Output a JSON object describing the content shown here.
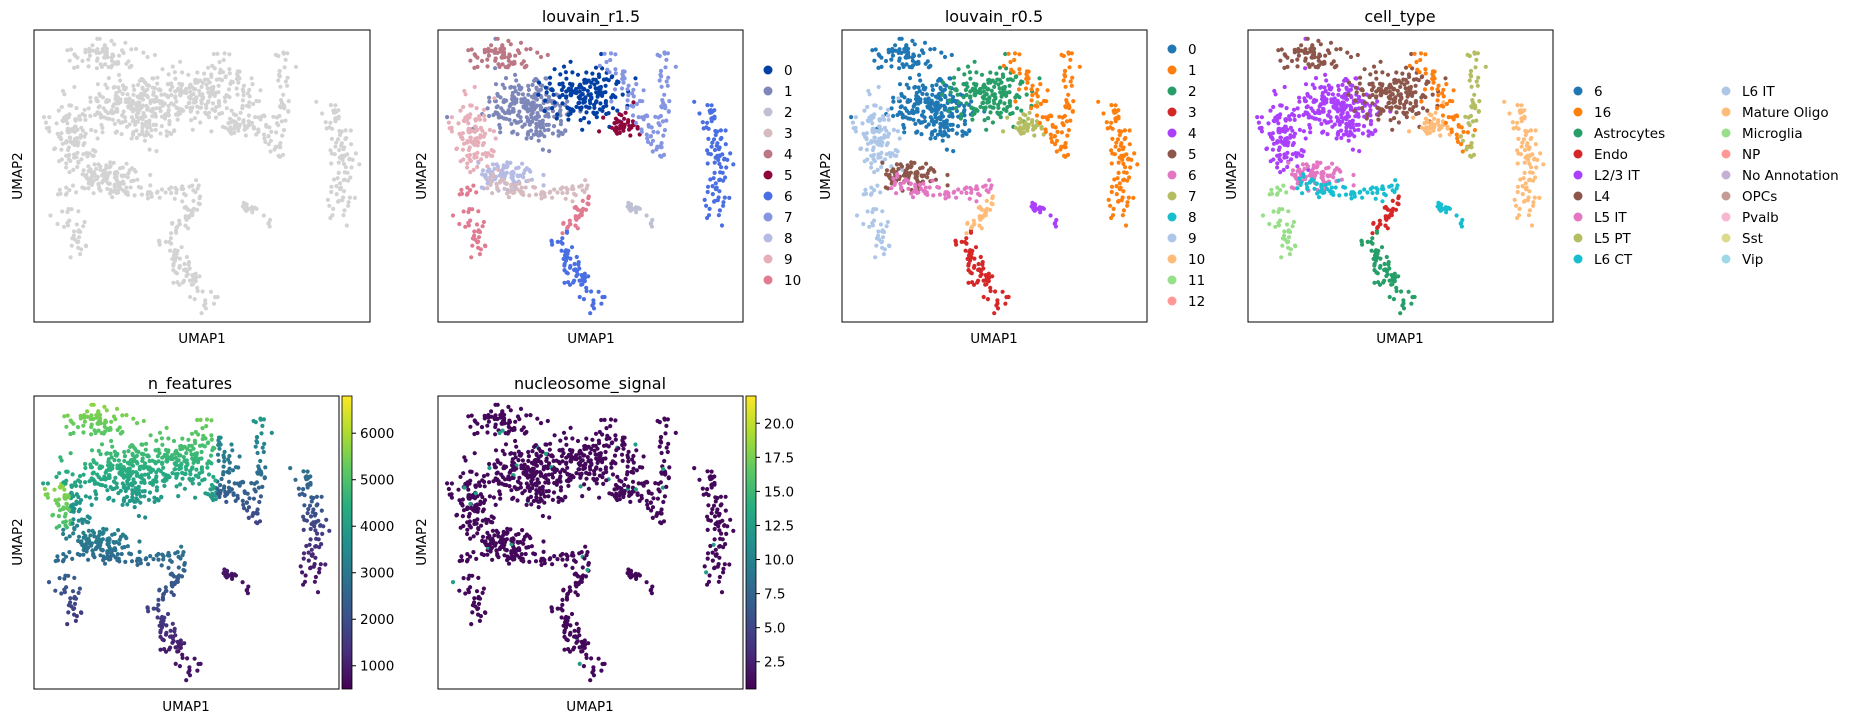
{
  "chart_data": [
    {
      "type": "scatter",
      "title": "",
      "xlabel": "UMAP1",
      "ylabel": "UMAP2",
      "color": "#d3d3d3",
      "legend": "none"
    },
    {
      "type": "scatter",
      "title": "louvain_r1.5",
      "xlabel": "UMAP1",
      "ylabel": "UMAP2",
      "legend_placement": "right",
      "categories": [
        "0",
        "1",
        "2",
        "3",
        "4",
        "5",
        "6",
        "7",
        "8",
        "9",
        "10"
      ],
      "colors": [
        "#023fa5",
        "#7d87b9",
        "#bec1d4",
        "#d6bcc0",
        "#bb7784",
        "#8e063b",
        "#4a6fe3",
        "#8595e1",
        "#b5bbe3",
        "#e6afb9",
        "#e07b91"
      ]
    },
    {
      "type": "scatter",
      "title": "louvain_r0.5",
      "xlabel": "UMAP1",
      "ylabel": "UMAP2",
      "legend_placement": "right",
      "categories": [
        "0",
        "1",
        "2",
        "3",
        "4",
        "5",
        "6",
        "7",
        "8",
        "9",
        "10",
        "11",
        "12"
      ],
      "colors": [
        "#1f77b4",
        "#ff7f0e",
        "#279e68",
        "#d62728",
        "#aa40fc",
        "#8c564b",
        "#e377c2",
        "#b5bd61",
        "#17becf",
        "#aec7e8",
        "#ffbb78",
        "#98df8a",
        "#ff9896"
      ]
    },
    {
      "type": "scatter",
      "title": "cell_type",
      "xlabel": "UMAP1",
      "ylabel": "UMAP2",
      "legend_placement": "right, two columns",
      "categories": [
        "6",
        "16",
        "Astrocytes",
        "Endo",
        "L2/3 IT",
        "L4",
        "L5 IT",
        "L5 PT",
        "L6 CT",
        "L6 IT",
        "Mature Oligo",
        "Microglia",
        "NP",
        "No Annotation",
        "OPCs",
        "Pvalb",
        "Sst",
        "Vip"
      ],
      "colors": [
        "#1f77b4",
        "#ff7f0e",
        "#279e68",
        "#d62728",
        "#aa40fc",
        "#8c564b",
        "#e377c2",
        "#b5bd61",
        "#17becf",
        "#aec7e8",
        "#ffbb78",
        "#98df8a",
        "#ff9896",
        "#c5b0d5",
        "#c49c94",
        "#f7b6d2",
        "#dbdb8d",
        "#9edae5"
      ]
    },
    {
      "type": "scatter",
      "title": "n_features",
      "xlabel": "UMAP1",
      "ylabel": "UMAP2",
      "colormap": "viridis",
      "colorbar_range": [
        500,
        6800
      ],
      "colorbar_ticks": [
        "1000",
        "2000",
        "3000",
        "4000",
        "5000",
        "6000"
      ]
    },
    {
      "type": "scatter",
      "title": "nucleosome_signal",
      "xlabel": "UMAP1",
      "ylabel": "UMAP2",
      "colormap": "viridis",
      "colorbar_range": [
        0.5,
        22.0
      ],
      "colorbar_ticks": [
        "2.5",
        "5.0",
        "7.5",
        "10.0",
        "12.5",
        "15.0",
        "17.5",
        "20.0"
      ]
    }
  ]
}
